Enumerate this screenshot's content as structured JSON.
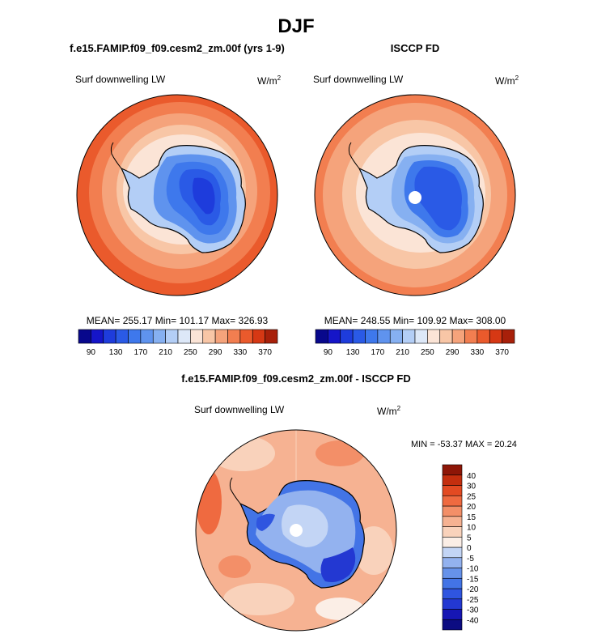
{
  "title": "DJF",
  "colors": {
    "land_outline": "#000000",
    "pole_hole": "#ffffff"
  },
  "chart_data": [
    {
      "type": "heatmap",
      "projection": "south-polar-stereographic",
      "title": "f.e15.FAMIP.f09_f09.cesm2_zm.00f (yrs 1-9)",
      "left_label": "Surf downwelling LW",
      "units_base": "W/m",
      "units_exp": "2",
      "stats": "MEAN= 255.17  Min= 101.17  Max= 326.93",
      "mean": 255.17,
      "min": 101.17,
      "max": 326.93,
      "colorbar": {
        "orientation": "horizontal",
        "levels": [
          90,
          110,
          130,
          150,
          170,
          190,
          210,
          230,
          250,
          270,
          290,
          310,
          330,
          350,
          370
        ],
        "tick_labels": [
          "90",
          "130",
          "170",
          "210",
          "250",
          "290",
          "330",
          "370"
        ],
        "colors": [
          "#08088c",
          "#1515c8",
          "#1e3cdc",
          "#2a5ae6",
          "#3e78ec",
          "#5f93ee",
          "#86b0f1",
          "#b3cef6",
          "#dde8f8",
          "#fbe4d6",
          "#f8c6a6",
          "#f5a37b",
          "#f27e50",
          "#ea5a2c",
          "#d63814",
          "#a8200a"
        ]
      }
    },
    {
      "type": "heatmap",
      "projection": "south-polar-stereographic",
      "title": "ISCCP FD",
      "left_label": "Surf downwelling LW",
      "units_base": "W/m",
      "units_exp": "2",
      "stats": "MEAN= 248.55  Min= 109.92  Max= 308.00",
      "mean": 248.55,
      "min": 109.92,
      "max": 308.0,
      "colorbar": {
        "orientation": "horizontal",
        "levels": [
          90,
          110,
          130,
          150,
          170,
          190,
          210,
          230,
          250,
          270,
          290,
          310,
          330,
          350,
          370
        ],
        "tick_labels": [
          "90",
          "130",
          "170",
          "210",
          "250",
          "290",
          "330",
          "370"
        ],
        "colors": [
          "#08088c",
          "#1515c8",
          "#1e3cdc",
          "#2a5ae6",
          "#3e78ec",
          "#5f93ee",
          "#86b0f1",
          "#b3cef6",
          "#dde8f8",
          "#fbe4d6",
          "#f8c6a6",
          "#f5a37b",
          "#f27e50",
          "#ea5a2c",
          "#d63814",
          "#a8200a"
        ]
      }
    },
    {
      "type": "heatmap",
      "projection": "south-polar-stereographic",
      "title": "f.e15.FAMIP.f09_f09.cesm2_zm.00f - ISCCP FD",
      "left_label": "Surf downwelling LW",
      "units_base": "W/m",
      "units_exp": "2",
      "stats": "MIN = -53.37 MAX =  20.24",
      "min": -53.37,
      "max": 20.24,
      "colorbar": {
        "orientation": "vertical",
        "levels": [
          -40,
          -30,
          -25,
          -20,
          -15,
          -10,
          -5,
          0,
          5,
          10,
          15,
          20,
          25,
          30,
          40
        ],
        "tick_labels": [
          "-40",
          "-30",
          "-25",
          "-20",
          "-15",
          "-10",
          "-5",
          "0",
          "5",
          "10",
          "15",
          "20",
          "25",
          "30",
          "40"
        ],
        "colors": [
          "#0c0c82",
          "#1616b4",
          "#2338d2",
          "#2f55e0",
          "#4374e6",
          "#6692ea",
          "#93b2ef",
          "#c3d5f5",
          "#fbeee6",
          "#f9d2bb",
          "#f6b292",
          "#f38f68",
          "#ef6a40",
          "#e34a22",
          "#c42e0e",
          "#8e1607"
        ]
      }
    }
  ]
}
